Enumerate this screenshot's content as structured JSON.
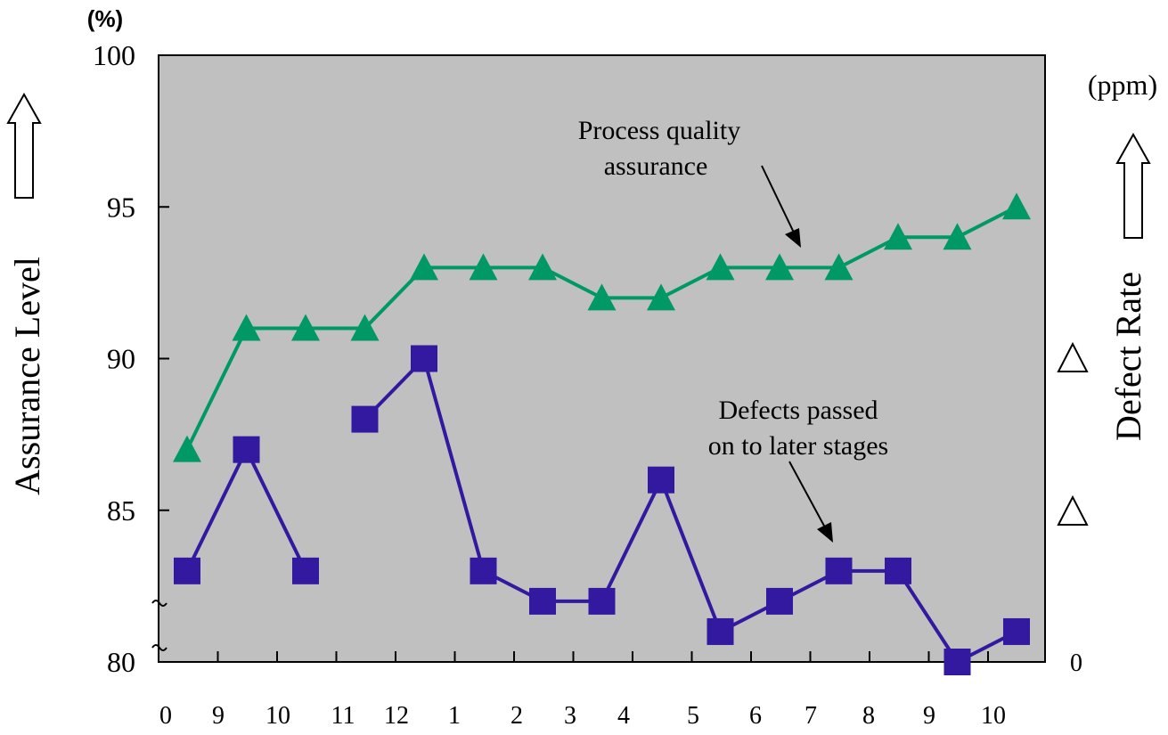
{
  "chart_data": {
    "type": "line",
    "ylabel": "Assurance Level",
    "ylabel_unit": "(%)",
    "y2label": "Defect Rate",
    "y2label_unit": "(ppm)",
    "ylim": [
      80,
      100
    ],
    "yticks": [
      "100",
      "95",
      "90",
      "85",
      "80"
    ],
    "y2_tick": "0",
    "y2_markers": [
      "triangle",
      "triangle"
    ],
    "xticks": [
      "0",
      "9",
      "10",
      "11",
      "12",
      "1",
      "2",
      "3",
      "4",
      "5",
      "6",
      "7",
      "8",
      "9",
      "10"
    ],
    "grid": false,
    "background": "#c0c0c0",
    "series": [
      {
        "name": "Process quality assurance",
        "annotation": [
          "Process quality",
          "assurance"
        ],
        "marker": "triangle",
        "color": "#009966",
        "values": [
          87,
          91,
          91,
          91,
          93,
          93,
          93,
          92,
          92,
          93,
          93,
          93,
          94,
          94,
          95
        ]
      },
      {
        "name": "Defects passed on to later stages",
        "annotation": [
          "Defects passed",
          "on to later stages"
        ],
        "marker": "square",
        "color": "#3319a0",
        "values": [
          83,
          87,
          83,
          88,
          90,
          83,
          82,
          82,
          86,
          81,
          82,
          83,
          83,
          80,
          81
        ],
        "segment_breaks_after": [
          2
        ]
      }
    ]
  }
}
